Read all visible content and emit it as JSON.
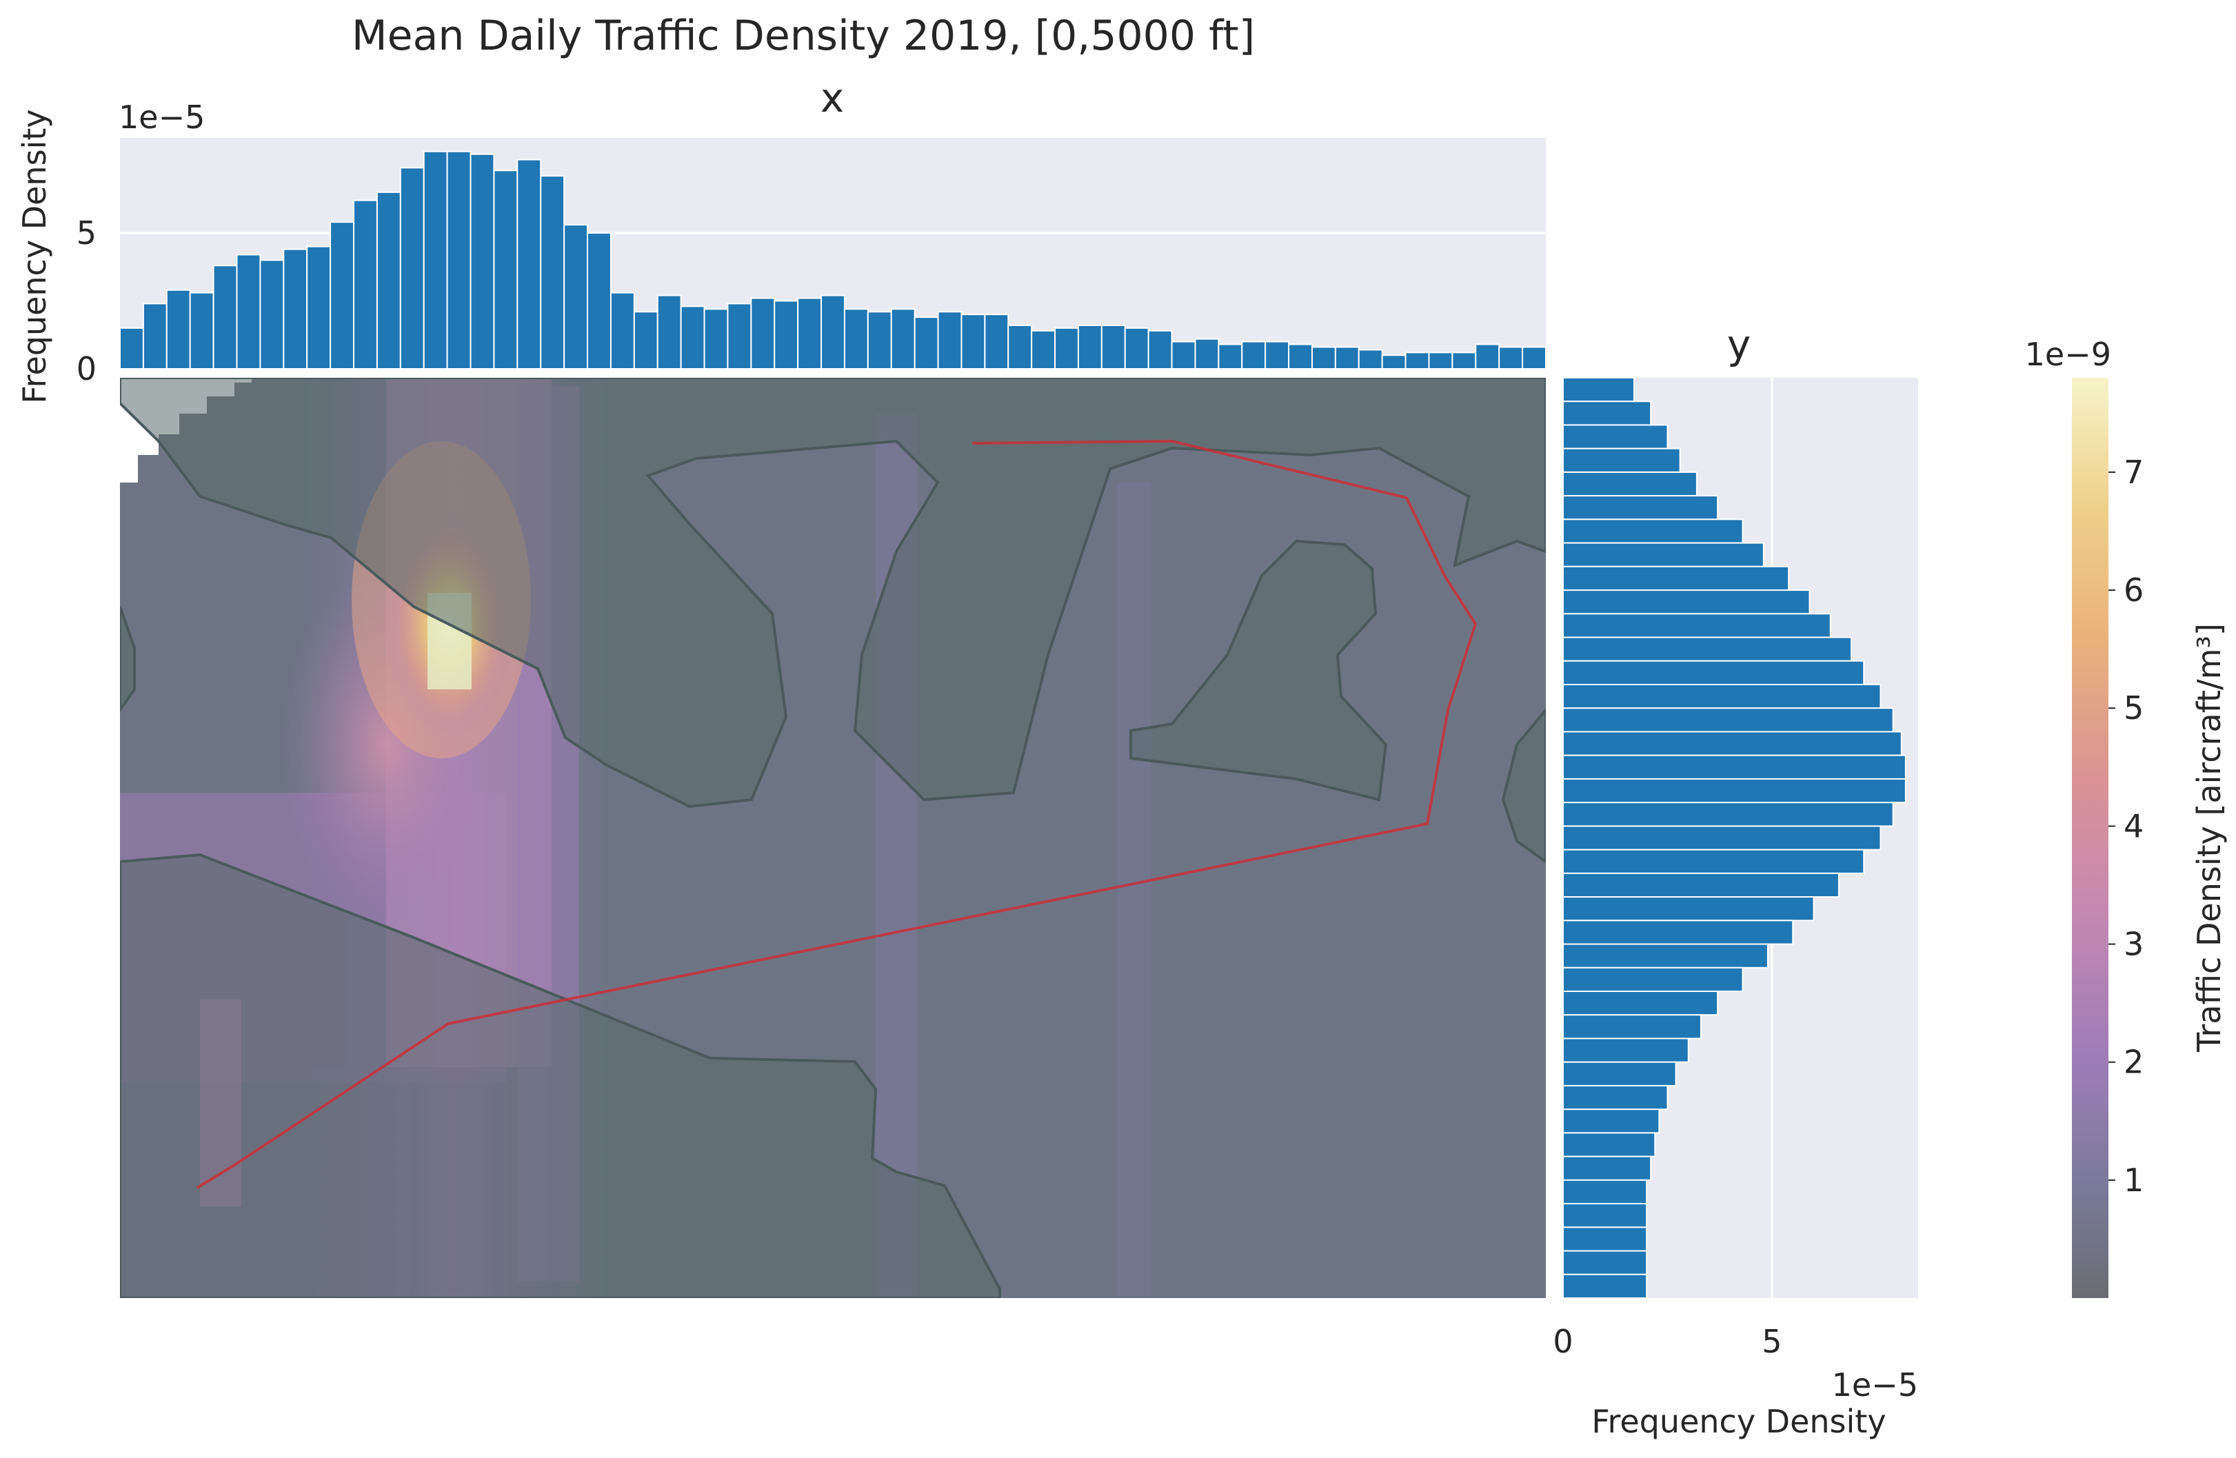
{
  "figure": {
    "title": "Mean Daily Traffic Density 2019, [0,5000 ft]",
    "colors": {
      "axes_bg": "#eaeaf2",
      "grid": "#ffffff",
      "bar": "#1f77b4",
      "route": "#d62728",
      "land": "#5c6e6e"
    }
  },
  "chart_data": [
    {
      "type": "bar",
      "panel": "x-marginal",
      "title": "x",
      "ylabel": "Frequency Density",
      "offset_label": "1e−5",
      "ylim": [
        0,
        8.5
      ],
      "yticks": [
        {
          "label": "0",
          "value": 0
        },
        {
          "label": "5",
          "value": 5
        }
      ],
      "values": [
        1.5,
        2.4,
        2.9,
        2.8,
        3.8,
        4.2,
        4.0,
        4.4,
        4.5,
        5.4,
        6.2,
        6.5,
        7.4,
        8.0,
        8.0,
        7.9,
        7.3,
        7.7,
        7.1,
        5.3,
        5.0,
        2.8,
        2.1,
        2.7,
        2.3,
        2.2,
        2.4,
        2.6,
        2.5,
        2.6,
        2.7,
        2.2,
        2.1,
        2.2,
        1.9,
        2.1,
        2.0,
        2.0,
        1.6,
        1.4,
        1.5,
        1.6,
        1.6,
        1.5,
        1.4,
        1.0,
        1.1,
        0.9,
        1.0,
        1.0,
        0.9,
        0.8,
        0.8,
        0.7,
        0.5,
        0.6,
        0.6,
        0.6,
        0.9,
        0.8,
        0.8
      ]
    },
    {
      "type": "bar",
      "panel": "y-marginal",
      "title": "y",
      "xlabel": "Frequency Density",
      "offset_label": "1e−5",
      "xlim": [
        0,
        8.5
      ],
      "xticks": [
        {
          "label": "0",
          "value": 0
        },
        {
          "label": "5",
          "value": 5
        }
      ],
      "values": [
        1.7,
        2.1,
        2.5,
        2.8,
        3.2,
        3.7,
        4.3,
        4.8,
        5.4,
        5.9,
        6.4,
        6.9,
        7.2,
        7.6,
        7.9,
        8.1,
        8.2,
        8.2,
        7.9,
        7.6,
        7.2,
        6.6,
        6.0,
        5.5,
        4.9,
        4.3,
        3.7,
        3.3,
        3.0,
        2.7,
        2.5,
        2.3,
        2.2,
        2.1,
        2.0,
        2.0,
        2.0,
        2.0,
        2.0
      ]
    },
    {
      "type": "heatmap",
      "panel": "density-map",
      "colorbar": {
        "label": "Traffic Density [aircraft/m³]",
        "offset_label": "1e−9",
        "range": [
          0,
          7.8
        ],
        "ticks": [
          {
            "label": "1",
            "value": 1
          },
          {
            "label": "2",
            "value": 2
          },
          {
            "label": "3",
            "value": 3
          },
          {
            "label": "4",
            "value": 4
          },
          {
            "label": "5",
            "value": 5
          },
          {
            "label": "6",
            "value": 6
          },
          {
            "label": "7",
            "value": 7
          }
        ]
      }
    }
  ]
}
